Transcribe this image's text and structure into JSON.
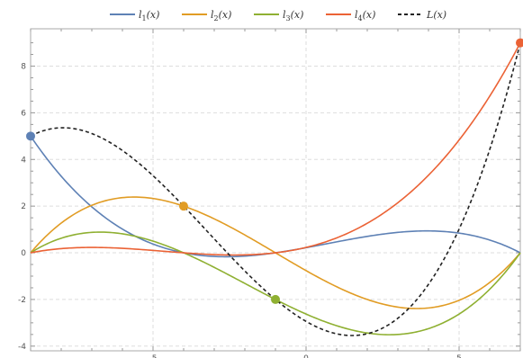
{
  "chart_data": {
    "type": "line",
    "title": "",
    "xlabel": "",
    "ylabel": "",
    "xlim": [
      -9,
      7
    ],
    "ylim": [
      -4.2,
      9.6
    ],
    "grid": true,
    "legend_placement": "top-center",
    "x_ticks": [
      -5,
      0,
      5
    ],
    "y_ticks": [
      -4,
      -2,
      0,
      2,
      4,
      6,
      8
    ],
    "x_tick_labels": [
      "-5",
      "0",
      "5"
    ],
    "y_tick_labels": [
      "-4",
      "-2",
      "0",
      "2",
      "4",
      "6",
      "8"
    ],
    "nodes": {
      "x": [
        -9,
        -4,
        -1,
        7
      ],
      "y": [
        5,
        2,
        -2,
        9
      ]
    },
    "series": [
      {
        "name": "l1(x)",
        "label_main": "l",
        "label_sub": "1",
        "label_tail": "(x)",
        "color": "#5e81b5",
        "dashed": false,
        "marker_node": 0
      },
      {
        "name": "l2(x)",
        "label_main": "l",
        "label_sub": "2",
        "label_tail": "(x)",
        "color": "#e19c24",
        "dashed": false,
        "marker_node": 1
      },
      {
        "name": "l3(x)",
        "label_main": "l",
        "label_sub": "3",
        "label_tail": "(x)",
        "color": "#8fb032",
        "dashed": false,
        "marker_node": 2
      },
      {
        "name": "l4(x)",
        "label_main": "l",
        "label_sub": "4",
        "label_tail": "(x)",
        "color": "#eb6235",
        "dashed": false,
        "marker_node": 3
      },
      {
        "name": "L(x)",
        "label_main": "L",
        "label_sub": "",
        "label_tail": "(x)",
        "color": "#222222",
        "dashed": true,
        "marker_node": null
      }
    ]
  }
}
